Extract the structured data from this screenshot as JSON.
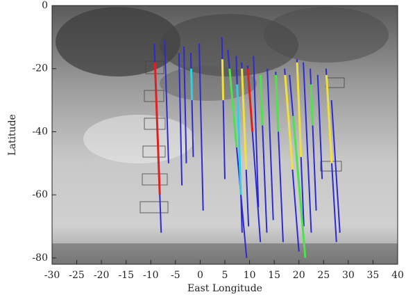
{
  "chart_data": {
    "type": "line",
    "x_label": "East Longitude",
    "y_label": "Latitude",
    "xlim": [
      -30,
      40
    ],
    "ylim": [
      -82,
      0
    ],
    "xticks": [
      -30,
      -25,
      -20,
      -15,
      -10,
      -5,
      0,
      5,
      10,
      15,
      20,
      25,
      30,
      35,
      40
    ],
    "yticks": [
      0,
      -20,
      -40,
      -60,
      -80
    ],
    "series": [
      {
        "color": "#2b2bd0",
        "x": [
          -9.3,
          -7.9
        ],
        "values": [
          -12,
          -72
        ]
      },
      {
        "color": "#2b2bd0",
        "x": [
          -7.2,
          -6.4
        ],
        "values": [
          -11,
          -50
        ]
      },
      {
        "color": "#2b2bd0",
        "x": [
          -4.3,
          -3.7
        ],
        "values": [
          -15,
          -57
        ]
      },
      {
        "color": "#2b2bd0",
        "x": [
          -3.3,
          -2.8
        ],
        "values": [
          -13,
          -50
        ]
      },
      {
        "color": "#2b2bd0",
        "x": [
          -1.9,
          -1.4
        ],
        "values": [
          -15,
          -48
        ]
      },
      {
        "color": "#2b2bd0",
        "x": [
          -0.2,
          0.6
        ],
        "values": [
          -12,
          -65
        ]
      },
      {
        "color": "#2b2bd0",
        "x": [
          4.4,
          5
        ],
        "values": [
          -10,
          -55
        ]
      },
      {
        "color": "#2b2bd0",
        "x": [
          5.6,
          9.4
        ],
        "values": [
          -14,
          -80
        ]
      },
      {
        "color": "#2b2bd0",
        "x": [
          7.3,
          8.5
        ],
        "values": [
          -16,
          -72
        ]
      },
      {
        "color": "#2b2bd0",
        "x": [
          8.4,
          9.8
        ],
        "values": [
          -18,
          -70
        ]
      },
      {
        "color": "#2b2bd0",
        "x": [
          9.6,
          12.2
        ],
        "values": [
          -19,
          -75
        ]
      },
      {
        "color": "#2b2bd0",
        "x": [
          10.8,
          11.8
        ],
        "values": [
          -16,
          -64
        ]
      },
      {
        "color": "#2b2bd0",
        "x": [
          12.2,
          13.5
        ],
        "values": [
          -22,
          -72
        ]
      },
      {
        "color": "#2b2bd0",
        "x": [
          13.6,
          14.8
        ],
        "values": [
          -20,
          -68
        ]
      },
      {
        "color": "#2b2bd0",
        "x": [
          15.3,
          16.8
        ],
        "values": [
          -21,
          -75
        ]
      },
      {
        "color": "#2b2bd0",
        "x": [
          17.1,
          20
        ],
        "values": [
          -20,
          -78
        ]
      },
      {
        "color": "#2b2bd0",
        "x": [
          18.1,
          21.3
        ],
        "values": [
          -22,
          -80
        ]
      },
      {
        "color": "#2b2bd0",
        "x": [
          19.6,
          21
        ],
        "values": [
          -17,
          -70
        ]
      },
      {
        "color": "#2b2bd0",
        "x": [
          20.9,
          22.5
        ],
        "values": [
          -18,
          -72
        ]
      },
      {
        "color": "#2b2bd0",
        "x": [
          22.3,
          23.5
        ],
        "values": [
          -20,
          -65
        ]
      },
      {
        "color": "#2b2bd0",
        "x": [
          23.8,
          24.7
        ],
        "values": [
          -22,
          -55
        ]
      },
      {
        "color": "#2b2bd0",
        "x": [
          25.5,
          27.6
        ],
        "values": [
          -20,
          -75
        ]
      },
      {
        "color": "#2b2bd0",
        "x": [
          26.6,
          28.3
        ],
        "values": [
          -30,
          -72
        ]
      },
      {
        "color": "#e02020",
        "x": [
          -9.16,
          -8.18
        ],
        "values": [
          -18,
          -60
        ]
      },
      {
        "color": "#30d0e0",
        "x": [
          -1.82,
          -1.67
        ],
        "values": [
          -20,
          -30
        ]
      },
      {
        "color": "#f0e040",
        "x": [
          4.49,
          4.67
        ],
        "values": [
          -17,
          -30
        ]
      },
      {
        "color": "#50e050",
        "x": [
          5.95,
          7.38
        ],
        "values": [
          -20,
          -45
        ]
      },
      {
        "color": "#30d0e0",
        "x": [
          7.49,
          8.24
        ],
        "values": [
          -25,
          -60
        ]
      },
      {
        "color": "#f0e040",
        "x": [
          8.45,
          9.32
        ],
        "values": [
          -20,
          -52
        ]
      },
      {
        "color": "#e02020",
        "x": [
          9.65,
          10.58
        ],
        "values": [
          -20,
          -40
        ]
      },
      {
        "color": "#50e050",
        "x": [
          12.2,
          12.62
        ],
        "values": [
          -22,
          -38
        ]
      },
      {
        "color": "#50e050",
        "x": [
          15.33,
          15.83
        ],
        "values": [
          -22,
          -40
        ]
      },
      {
        "color": "#f0e040",
        "x": [
          17.2,
          18.7
        ],
        "values": [
          -22,
          -52
        ]
      },
      {
        "color": "#50e050",
        "x": [
          18.82,
          21.3
        ],
        "values": [
          -35,
          -80
        ]
      },
      {
        "color": "#f0e040",
        "x": [
          19.63,
          20.42
        ],
        "values": [
          -18,
          -48
        ]
      },
      {
        "color": "#50e050",
        "x": [
          22.43,
          22.78
        ],
        "values": [
          -25,
          -38
        ]
      },
      {
        "color": "#f0e040",
        "x": [
          25.58,
          26.65
        ],
        "values": [
          -22,
          -50
        ]
      }
    ]
  }
}
